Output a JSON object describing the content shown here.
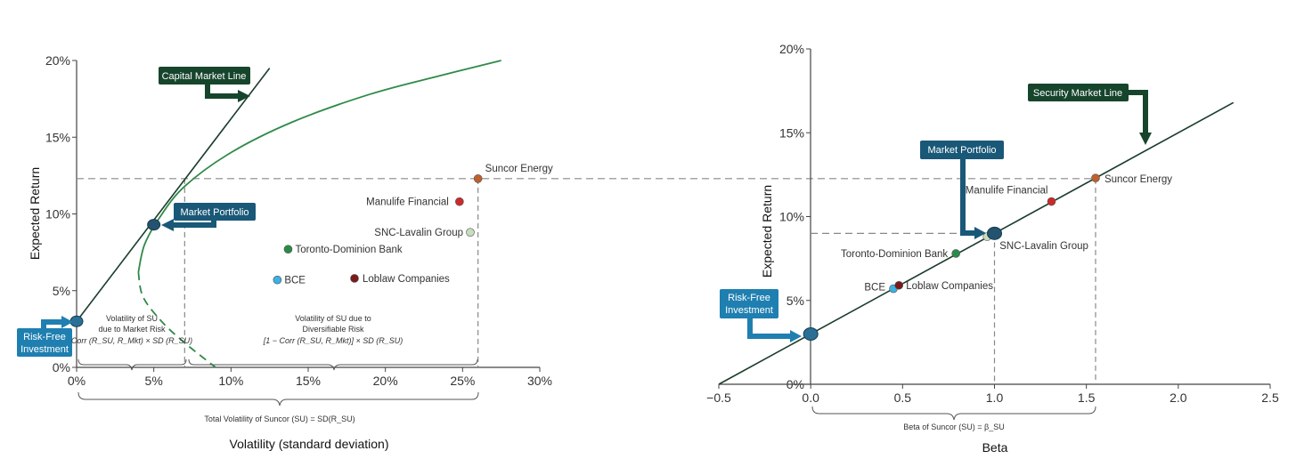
{
  "colors": {
    "axis": "#444444",
    "line": "#1a3d2a",
    "curve": "#2f8a4a",
    "dashed": "#888888",
    "callout_green": "#16452c",
    "callout_blue": "#1a5878",
    "callout_bright_blue": "#1f7fb0",
    "market_dot": "#24536f",
    "riskfree_dot": "#2a6f96"
  },
  "chart_data": [
    {
      "type": "scatter",
      "xlabel": "Volatility (standard deviation)",
      "ylabel": "Expected Return",
      "xlim": [
        0,
        30
      ],
      "ylim": [
        0,
        20
      ],
      "x_ticks": [
        {
          "v": 0,
          "label": "0%"
        },
        {
          "v": 5,
          "label": "5%"
        },
        {
          "v": 10,
          "label": "10%"
        },
        {
          "v": 15,
          "label": "15%"
        },
        {
          "v": 20,
          "label": "20%"
        },
        {
          "v": 25,
          "label": "25%"
        },
        {
          "v": 30,
          "label": "30%"
        }
      ],
      "y_ticks": [
        {
          "v": 0,
          "label": "0%"
        },
        {
          "v": 5,
          "label": "5%"
        },
        {
          "v": 10,
          "label": "10%"
        },
        {
          "v": 15,
          "label": "15%"
        },
        {
          "v": 20,
          "label": "20%"
        }
      ],
      "points": [
        {
          "name": "Suncor Energy",
          "x": 26.0,
          "y": 12.3,
          "color": "#c0602a"
        },
        {
          "name": "Manulife Financial",
          "x": 24.8,
          "y": 10.8,
          "color": "#cc2a2a"
        },
        {
          "name": "SNC-Lavalin Group",
          "x": 25.5,
          "y": 8.8,
          "color": "#c8dcc0"
        },
        {
          "name": "Toronto-Dominion Bank",
          "x": 13.7,
          "y": 7.7,
          "color": "#2a8a4a"
        },
        {
          "name": "BCE",
          "x": 13.0,
          "y": 5.7,
          "color": "#3ab2e6"
        },
        {
          "name": "Loblaw Companies",
          "x": 18.0,
          "y": 5.8,
          "color": "#7a1a1a"
        }
      ],
      "capital_market_line": [
        {
          "x": 0,
          "y": 3.0
        },
        {
          "x": 12.5,
          "y": 19.5
        }
      ],
      "efficient_frontier": [
        {
          "x": 4.0,
          "y": 6.2
        },
        {
          "x": 4.4,
          "y": 8.0
        },
        {
          "x": 5.4,
          "y": 9.8
        },
        {
          "x": 7.0,
          "y": 11.8
        },
        {
          "x": 10.0,
          "y": 14.0
        },
        {
          "x": 14.0,
          "y": 16.0
        },
        {
          "x": 19.0,
          "y": 17.8
        },
        {
          "x": 23.5,
          "y": 19.0
        },
        {
          "x": 27.5,
          "y": 20.0
        }
      ],
      "frontier_lower": [
        {
          "x": 4.0,
          "y": 6.2
        },
        {
          "x": 4.3,
          "y": 4.6
        },
        {
          "x": 5.5,
          "y": 3.0
        },
        {
          "x": 7.0,
          "y": 1.6
        },
        {
          "x": 9.0,
          "y": 0.0
        }
      ],
      "market_portfolio": {
        "x": 5.0,
        "y": 9.3
      },
      "risk_free": {
        "x": 0,
        "y": 3.0
      },
      "dashed_verticals": [
        7.0,
        26.0
      ],
      "brace_text_1": [
        "Volatility of SU",
        "due to Market Risk",
        "Corr (R_SU, R_Mkt) × SD (R_SU)"
      ],
      "brace_text_2": [
        "Volatility of SU due to",
        "Diversifiable Risk",
        "[1 − Corr (R_SU, R_Mkt)] × SD (R_SU)"
      ],
      "brace_total": "Total Volatility of Suncor (SU) = SD(R_SU)",
      "callouts": {
        "cml": "Capital Market Line",
        "market": "Market Portfolio",
        "riskfree_1": "Risk-Free",
        "riskfree_2": "Investment"
      }
    },
    {
      "type": "scatter",
      "xlabel": "Beta",
      "ylabel": "Expected Return",
      "xlim": [
        -0.5,
        2.5
      ],
      "ylim": [
        0,
        20
      ],
      "x_ticks": [
        {
          "v": -0.5,
          "label": "−0.5"
        },
        {
          "v": 0.0,
          "label": "0.0"
        },
        {
          "v": 0.5,
          "label": "0.5"
        },
        {
          "v": 1.0,
          "label": "1.0"
        },
        {
          "v": 1.5,
          "label": "1.5"
        },
        {
          "v": 2.0,
          "label": "2.0"
        },
        {
          "v": 2.5,
          "label": "2.5"
        }
      ],
      "y_ticks": [
        {
          "v": 0,
          "label": "0%"
        },
        {
          "v": 5,
          "label": "5%"
        },
        {
          "v": 10,
          "label": "10%"
        },
        {
          "v": 15,
          "label": "15%"
        },
        {
          "v": 20,
          "label": "20%"
        }
      ],
      "points": [
        {
          "name": "Suncor Energy",
          "x": 1.55,
          "y": 12.3,
          "color": "#c0602a"
        },
        {
          "name": "Manulife Financial",
          "x": 1.31,
          "y": 10.9,
          "color": "#cc2a2a"
        },
        {
          "name": "SNC-Lavalin Group",
          "x": 0.96,
          "y": 8.8,
          "color": "#c8dcc0"
        },
        {
          "name": "Toronto-Dominion Bank",
          "x": 0.79,
          "y": 7.8,
          "color": "#2a8a4a"
        },
        {
          "name": "BCE",
          "x": 0.45,
          "y": 5.7,
          "color": "#3ab2e6"
        },
        {
          "name": "Loblaw Companies",
          "x": 0.48,
          "y": 5.9,
          "color": "#7a1a1a"
        }
      ],
      "security_market_line": [
        {
          "x": -0.5,
          "y": 0.0
        },
        {
          "x": 2.3,
          "y": 16.8
        }
      ],
      "market_portfolio": {
        "x": 1.0,
        "y": 9.0
      },
      "risk_free": {
        "x": 0.0,
        "y": 3.0
      },
      "dashed_verticals": [
        1.0,
        1.55
      ],
      "brace_total": "Beta of Suncor (SU) = β_SU",
      "callouts": {
        "sml": "Security Market Line",
        "market": "Market Portfolio",
        "riskfree_1": "Risk-Free",
        "riskfree_2": "Investment"
      }
    }
  ]
}
